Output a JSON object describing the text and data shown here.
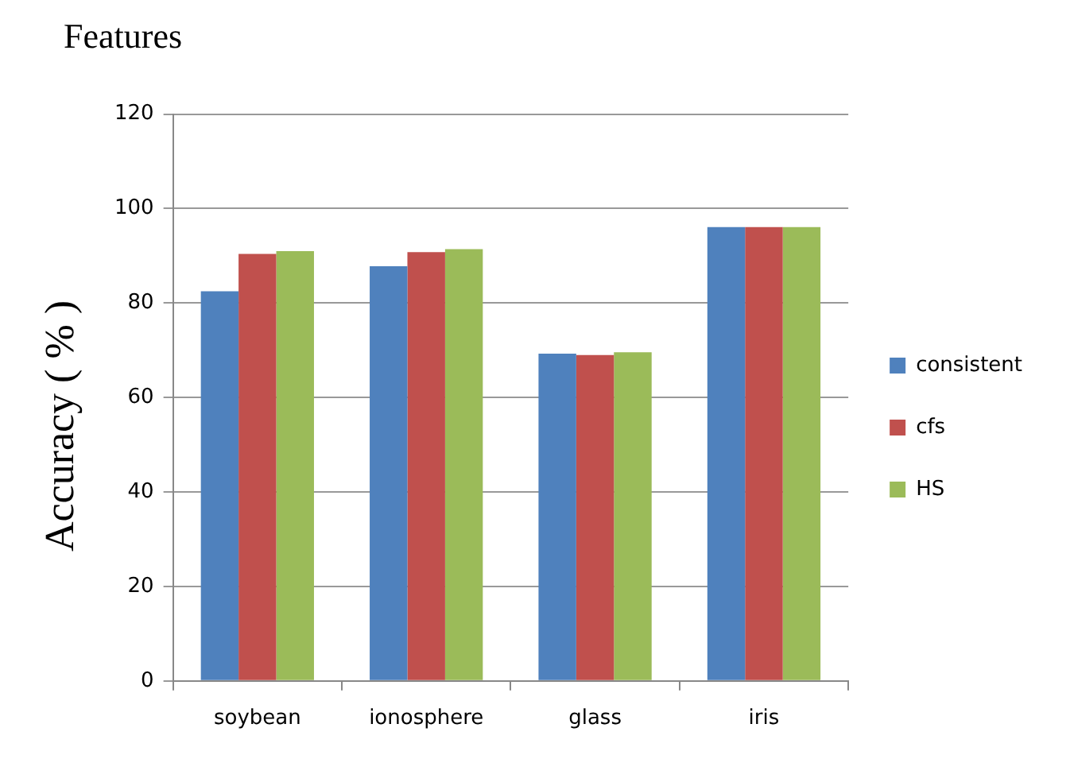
{
  "chart_data": {
    "type": "bar",
    "title": "Features",
    "ylabel": "Accuracy ( % )",
    "categories": [
      "soybean",
      "ionosphere",
      "glass",
      "iris"
    ],
    "series": [
      {
        "name": "consistent",
        "color": "#4f81bd",
        "values": [
          82.5,
          87.8,
          69.3,
          96.1
        ]
      },
      {
        "name": "cfs",
        "color": "#c0504d",
        "values": [
          90.4,
          90.8,
          69,
          96.1
        ]
      },
      {
        "name": "HS",
        "color": "#9bbb59",
        "values": [
          91,
          91.4,
          69.6,
          96.1
        ]
      }
    ],
    "ylim": [
      0,
      120
    ],
    "yticks": [
      0,
      20,
      40,
      60,
      80,
      100,
      120
    ],
    "grid": "y",
    "legend": "right"
  }
}
